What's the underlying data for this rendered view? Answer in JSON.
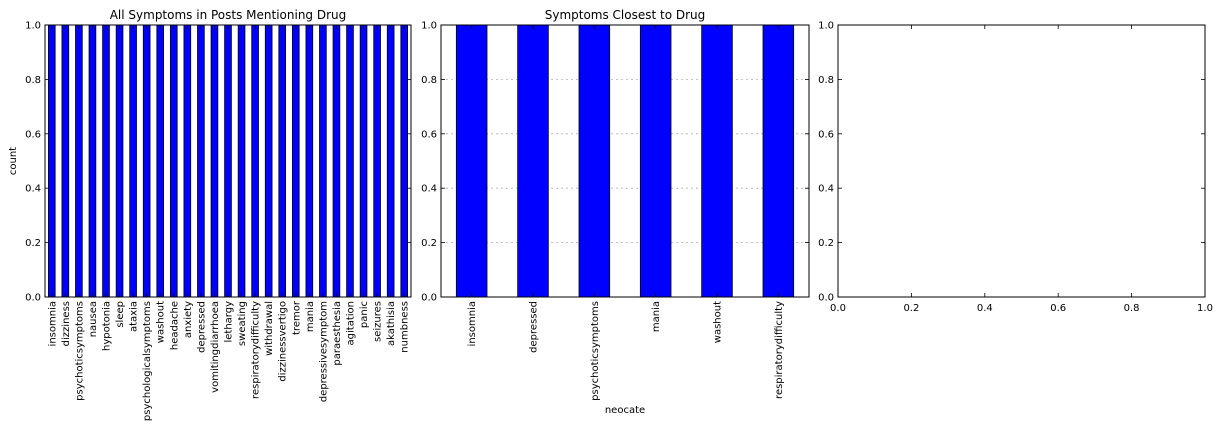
{
  "chart_data": [
    {
      "type": "bar",
      "title": "All Symptoms in Posts Mentioning Drug",
      "xlabel": "",
      "ylabel": "count",
      "ylim": [
        0,
        1
      ],
      "yticks": [
        "0.0",
        "0.2",
        "0.4",
        "0.6",
        "0.8",
        "1.0"
      ],
      "grid": false,
      "color": "#0000ff",
      "categories": [
        "insomnia",
        "dizziness",
        "psychoticsymptoms",
        "nausea",
        "hypotonia",
        "sleep",
        "ataxia",
        "psychologicalsymptoms",
        "washout",
        "headache",
        "anxiety",
        "depressed",
        "vomitingdiarrhoea",
        "lethargy",
        "sweating",
        "respiratorydifficulty",
        "withdrawal",
        "dizzinessvertigo",
        "tremor",
        "mania",
        "depressivesymptom",
        "paraesthesia",
        "agitation",
        "panic",
        "seizures",
        "akathisia",
        "numbness"
      ],
      "values": [
        1,
        1,
        1,
        1,
        1,
        1,
        1,
        1,
        1,
        1,
        1,
        1,
        1,
        1,
        1,
        1,
        1,
        1,
        1,
        1,
        1,
        1,
        1,
        1,
        1,
        1,
        1
      ]
    },
    {
      "type": "bar",
      "title": "Symptoms Closest to Drug",
      "xlabel": "neocate",
      "ylabel": "",
      "ylim": [
        0,
        1
      ],
      "yticks": [
        "0.0",
        "0.2",
        "0.4",
        "0.6",
        "0.8",
        "1.0"
      ],
      "grid": true,
      "color": "#0000ff",
      "categories": [
        "insomnia",
        "depressed",
        "psychoticsymptoms",
        "mania",
        "washout",
        "respiratorydifficulty"
      ],
      "values": [
        1,
        1,
        1,
        1,
        1,
        1
      ]
    },
    {
      "type": "empty",
      "title": "",
      "xlabel": "",
      "ylabel": "",
      "xlim": [
        0,
        1
      ],
      "ylim": [
        0,
        1
      ],
      "xticks": [
        "0.0",
        "0.2",
        "0.4",
        "0.6",
        "0.8",
        "1.0"
      ],
      "yticks": [
        "0.0",
        "0.2",
        "0.4",
        "0.6",
        "0.8",
        "1.0"
      ],
      "grid": false
    }
  ]
}
